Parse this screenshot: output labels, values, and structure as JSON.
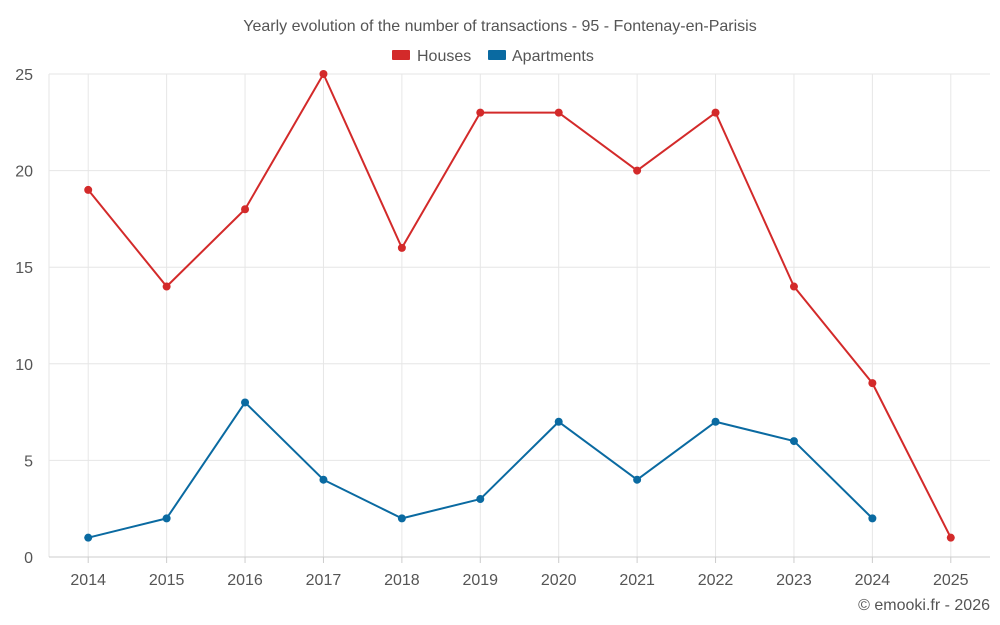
{
  "chart_data": {
    "type": "line",
    "title": "Yearly evolution of the number of transactions - 95 - Fontenay-en-Parisis",
    "x": [
      "2014",
      "2015",
      "2016",
      "2017",
      "2018",
      "2019",
      "2020",
      "2021",
      "2022",
      "2023",
      "2024",
      "2025"
    ],
    "ylim": [
      0,
      25
    ],
    "yticks": [
      0,
      5,
      10,
      15,
      20,
      25
    ],
    "grid": true,
    "legend_position": "top-center",
    "series": [
      {
        "name": "Houses",
        "color": "#d32a2a",
        "values": [
          19,
          14,
          18,
          25,
          16,
          23,
          23,
          20,
          23,
          14,
          9,
          1
        ]
      },
      {
        "name": "Apartments",
        "color": "#0a6aa1",
        "values": [
          1,
          2,
          8,
          4,
          2,
          3,
          7,
          4,
          7,
          6,
          2,
          null
        ]
      }
    ]
  },
  "credit": "© emooki.fr - 2026"
}
